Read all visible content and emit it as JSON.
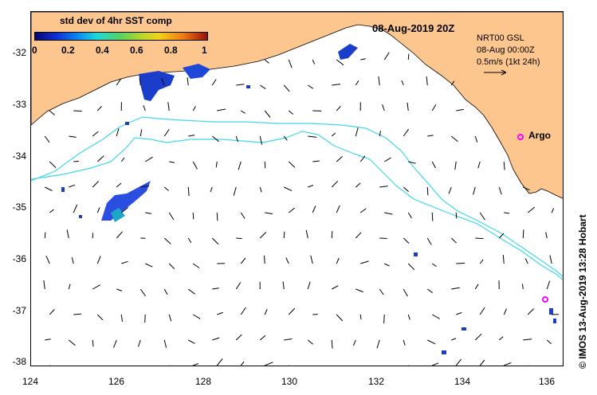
{
  "header": {
    "date_title": "08-Aug-2019 20Z",
    "legend_title": "std dev of 4hr SST comp"
  },
  "colorbar": {
    "ticks": [
      "0",
      "0.2",
      "0.4",
      "0.6",
      "0.8",
      "1"
    ]
  },
  "info": {
    "line1": "NRT00 GSL",
    "line2": "08-Aug 00:00Z",
    "line3": "0.5m/s (1kt 24h)"
  },
  "axes": {
    "y_ticks": [
      "-32",
      "-33",
      "-34",
      "-35",
      "-36",
      "-37",
      "-38"
    ],
    "x_ticks": [
      "124",
      "126",
      "128",
      "130",
      "132",
      "134",
      "136"
    ]
  },
  "markers": {
    "argo_label": "Argo"
  },
  "credit": "© IMOS 13-Aug-2019 13:28 Hobart",
  "colors": {
    "land": "#fdc68f",
    "contour": "#3fd9e8",
    "argo": "#ff00ff",
    "colorbar_low": "#08086e",
    "colorbar_high": "#9a0f0f"
  }
}
